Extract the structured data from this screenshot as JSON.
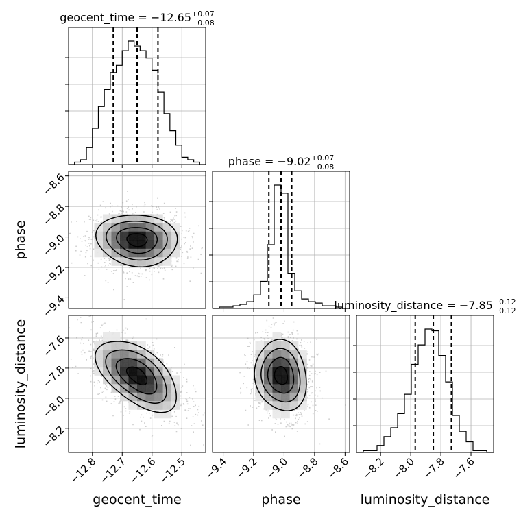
{
  "chart_data": {
    "type": "corner",
    "parameters": [
      "geocent_time",
      "phase",
      "luminosity_distance"
    ],
    "titles": [
      {
        "name": "geocent_time",
        "value": "−12.65",
        "plus": "+0.07",
        "minus": "−0.08"
      },
      {
        "name": "phase",
        "value": "−9.02",
        "plus": "+0.07",
        "minus": "−0.08"
      },
      {
        "name": "luminosity_distance",
        "value": "−7.85",
        "plus": "+0.12",
        "minus": "−0.12"
      }
    ],
    "ranges": [
      [
        -12.88,
        -12.42
      ],
      [
        -9.47,
        -8.57
      ],
      [
        -8.36,
        -7.45
      ]
    ],
    "ticks": [
      {
        "values": [
          -12.8,
          -12.7,
          -12.6,
          -12.5
        ],
        "labels": [
          "−12.8",
          "−12.7",
          "−12.6",
          "−12.5"
        ]
      },
      {
        "values": [
          -9.4,
          -9.2,
          -9.0,
          -8.8,
          -8.6
        ],
        "labels": [
          "−9.4",
          "−9.2",
          "−9.0",
          "−8.8",
          "−8.6"
        ]
      },
      {
        "values": [
          -8.2,
          -8.0,
          -7.8,
          -7.6
        ],
        "labels": [
          "−8.2",
          "−8.0",
          "−7.8",
          "−7.6"
        ]
      }
    ],
    "quantiles": [
      [
        -12.73,
        -12.65,
        -12.58
      ],
      [
        -9.1,
        -9.02,
        -8.95
      ],
      [
        -7.97,
        -7.85,
        -7.73
      ]
    ],
    "histograms": [
      {
        "counts": [
          0,
          1,
          2,
          7,
          15,
          24,
          31,
          38,
          41,
          47,
          51,
          49,
          47,
          44,
          39,
          30,
          21,
          14,
          8,
          3,
          2,
          1,
          0
        ]
      },
      {
        "counts": [
          0,
          1,
          1,
          2,
          3,
          5,
          10,
          20,
          47,
          91,
          85,
          26,
          13,
          7,
          5,
          4,
          2,
          2,
          1,
          0
        ]
      },
      {
        "counts": [
          0,
          1,
          1,
          4,
          9,
          14,
          22,
          33,
          50,
          61,
          70,
          69,
          55,
          40,
          21,
          12,
          6,
          1,
          1,
          0
        ]
      }
    ],
    "correlations": {
      "0-1": -0.08,
      "0-2": -0.55,
      "1-2": -0.12
    },
    "sigmas": [
      0.068,
      0.085,
      0.118
    ],
    "grid": true,
    "scatter_color": "#9e9e9e",
    "line_color": "#000000"
  }
}
